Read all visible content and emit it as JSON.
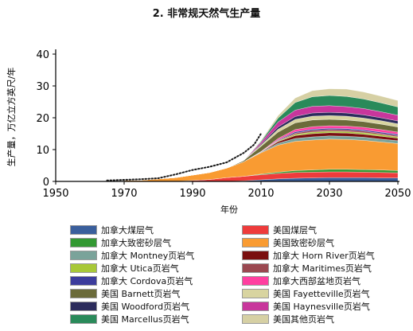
{
  "title": "2. 非常规天然气生产量",
  "chart_data": {
    "type": "area",
    "title": "2. 非常规天然气生产量",
    "xlabel": "年份",
    "ylabel": "生产量，万亿立方英尺/年",
    "xlim": [
      1950,
      2050
    ],
    "ylim": [
      0,
      40
    ],
    "xticks": [
      1950,
      1970,
      1990,
      2010,
      2030,
      2050
    ],
    "yticks": [
      0,
      10,
      20,
      30,
      40
    ],
    "stacked": true,
    "x": [
      1965,
      1975,
      1985,
      1995,
      2000,
      2005,
      2010,
      2015,
      2020,
      2025,
      2030,
      2035,
      2040,
      2045,
      2050
    ],
    "series": [
      {
        "name": "加拿大煤层气",
        "color": "#3a5f9c",
        "values": [
          0,
          0,
          0,
          0,
          0,
          0.2,
          0.5,
          0.8,
          1.0,
          1.1,
          1.2,
          1.2,
          1.2,
          1.1,
          1.1
        ]
      },
      {
        "name": "美国煤层气",
        "color": "#ee3b3b",
        "values": [
          0,
          0,
          0,
          0.6,
          1.2,
          1.4,
          1.6,
          1.7,
          1.8,
          1.8,
          1.8,
          1.8,
          1.7,
          1.7,
          1.6
        ]
      },
      {
        "name": "加拿大致密砂层气",
        "color": "#339933",
        "values": [
          0,
          0,
          0,
          0,
          0,
          0,
          0.2,
          0.4,
          0.6,
          0.7,
          0.8,
          0.8,
          0.8,
          0.8,
          0.7
        ]
      },
      {
        "name": "美国致密砂层气",
        "color": "#f99b32",
        "values": [
          0.2,
          0.4,
          1.2,
          2.2,
          3.0,
          4.6,
          6.7,
          8.5,
          9.2,
          9.4,
          9.5,
          9.4,
          9.2,
          8.8,
          8.5
        ]
      },
      {
        "name": "加拿大 Montney页岩气",
        "color": "#7aa39a",
        "values": [
          0,
          0,
          0,
          0,
          0,
          0,
          0.2,
          0.6,
          0.9,
          1.0,
          1.0,
          1.0,
          1.0,
          0.9,
          0.9
        ]
      },
      {
        "name": "加拿大 Horn River页岩气",
        "color": "#7a0f0f",
        "values": [
          0,
          0,
          0,
          0,
          0,
          0,
          0.1,
          0.5,
          0.9,
          1.0,
          1.0,
          1.0,
          0.9,
          0.9,
          0.8
        ]
      },
      {
        "name": "加拿大 Utica页岩气",
        "color": "#a8c838",
        "values": [
          0,
          0,
          0,
          0,
          0,
          0,
          0,
          0.2,
          0.4,
          0.5,
          0.5,
          0.5,
          0.5,
          0.5,
          0.4
        ]
      },
      {
        "name": "加拿大 Maritimes页岩气",
        "color": "#9a4850",
        "values": [
          0,
          0,
          0,
          0,
          0,
          0,
          0,
          0.2,
          0.4,
          0.5,
          0.5,
          0.5,
          0.5,
          0.4,
          0.4
        ]
      },
      {
        "name": "加拿大 Cordova页岩气",
        "color": "#3c3c9c",
        "values": [
          0,
          0,
          0,
          0,
          0,
          0,
          0,
          0.2,
          0.4,
          0.4,
          0.4,
          0.4,
          0.4,
          0.4,
          0.4
        ]
      },
      {
        "name": "加拿大西部盆地页岩气",
        "color": "#ff3fa0",
        "values": [
          0,
          0,
          0,
          0,
          0,
          0,
          0.1,
          0.4,
          0.7,
          0.8,
          0.8,
          0.8,
          0.8,
          0.8,
          0.7
        ]
      },
      {
        "name": "美国 Barnett页岩气",
        "color": "#6b6b3a",
        "values": [
          0,
          0,
          0,
          0,
          0,
          0.4,
          1.6,
          2.0,
          2.1,
          2.1,
          2.0,
          1.9,
          1.8,
          1.7,
          1.6
        ]
      },
      {
        "name": "美国 Fayetteville页岩气",
        "color": "#d8d4a0",
        "values": [
          0,
          0,
          0,
          0,
          0,
          0,
          0.4,
          0.9,
          1.1,
          1.2,
          1.2,
          1.2,
          1.1,
          1.1,
          1.0
        ]
      },
      {
        "name": "美国 Woodford页岩气",
        "color": "#2c2c5c",
        "values": [
          0,
          0,
          0,
          0,
          0,
          0,
          0.3,
          0.7,
          0.9,
          1.0,
          1.0,
          1.0,
          1.0,
          0.9,
          0.9
        ]
      },
      {
        "name": "美国 Haynesville页岩气",
        "color": "#c8369c",
        "values": [
          0,
          0,
          0,
          0,
          0,
          0,
          0.6,
          1.6,
          2.0,
          2.1,
          2.1,
          2.0,
          2.0,
          1.9,
          1.8
        ]
      },
      {
        "name": "美国 Marcellus页岩气",
        "color": "#2a8a5a",
        "values": [
          0,
          0,
          0,
          0,
          0,
          0,
          0.3,
          1.2,
          2.4,
          3.0,
          3.2,
          3.2,
          3.0,
          2.8,
          2.6
        ]
      },
      {
        "name": "美国其他页岩气",
        "color": "#d6d0a4",
        "values": [
          0,
          0,
          0,
          0,
          0,
          0,
          0.2,
          0.8,
          1.4,
          1.9,
          2.1,
          2.3,
          2.2,
          2.1,
          2.0
        ]
      }
    ],
    "actual": {
      "x": [
        1965,
        1970,
        1975,
        1980,
        1985,
        1990,
        1995,
        2000,
        2005,
        2008,
        2010
      ],
      "values": [
        0.3,
        0.5,
        0.7,
        1.0,
        2.2,
        3.6,
        4.6,
        6.0,
        9.0,
        11.6,
        15.0
      ]
    },
    "legend_position": "bottom"
  },
  "legend": [
    {
      "label": "加拿大煤层气",
      "color": "#3a5f9c"
    },
    {
      "label": "美国煤层气",
      "color": "#ee3b3b"
    },
    {
      "label": "加拿大致密砂层气",
      "color": "#339933"
    },
    {
      "label": "美国致密砂层气",
      "color": "#f99b32"
    },
    {
      "label": "加拿大 Montney页岩气",
      "color": "#7aa39a"
    },
    {
      "label": "加拿大 Horn River页岩气",
      "color": "#7a0f0f"
    },
    {
      "label": "加拿大 Utica页岩气",
      "color": "#a8c838"
    },
    {
      "label": "加拿大 Maritimes页岩气",
      "color": "#9a4850"
    },
    {
      "label": "加拿大 Cordova页岩气",
      "color": "#3c3c9c"
    },
    {
      "label": "加拿大西部盆地页岩气",
      "color": "#ff3fa0"
    },
    {
      "label": "美国 Barnett页岩气",
      "color": "#6b6b3a"
    },
    {
      "label": "美国 Fayetteville页岩气",
      "color": "#d8d4a0"
    },
    {
      "label": "美国 Woodford页岩气",
      "color": "#2c2c5c"
    },
    {
      "label": "美国 Haynesville页岩气",
      "color": "#c8369c"
    },
    {
      "label": "美国 Marcellus页岩气",
      "color": "#2a8a5a"
    },
    {
      "label": "美国其他页岩气",
      "color": "#d6d0a4"
    }
  ]
}
